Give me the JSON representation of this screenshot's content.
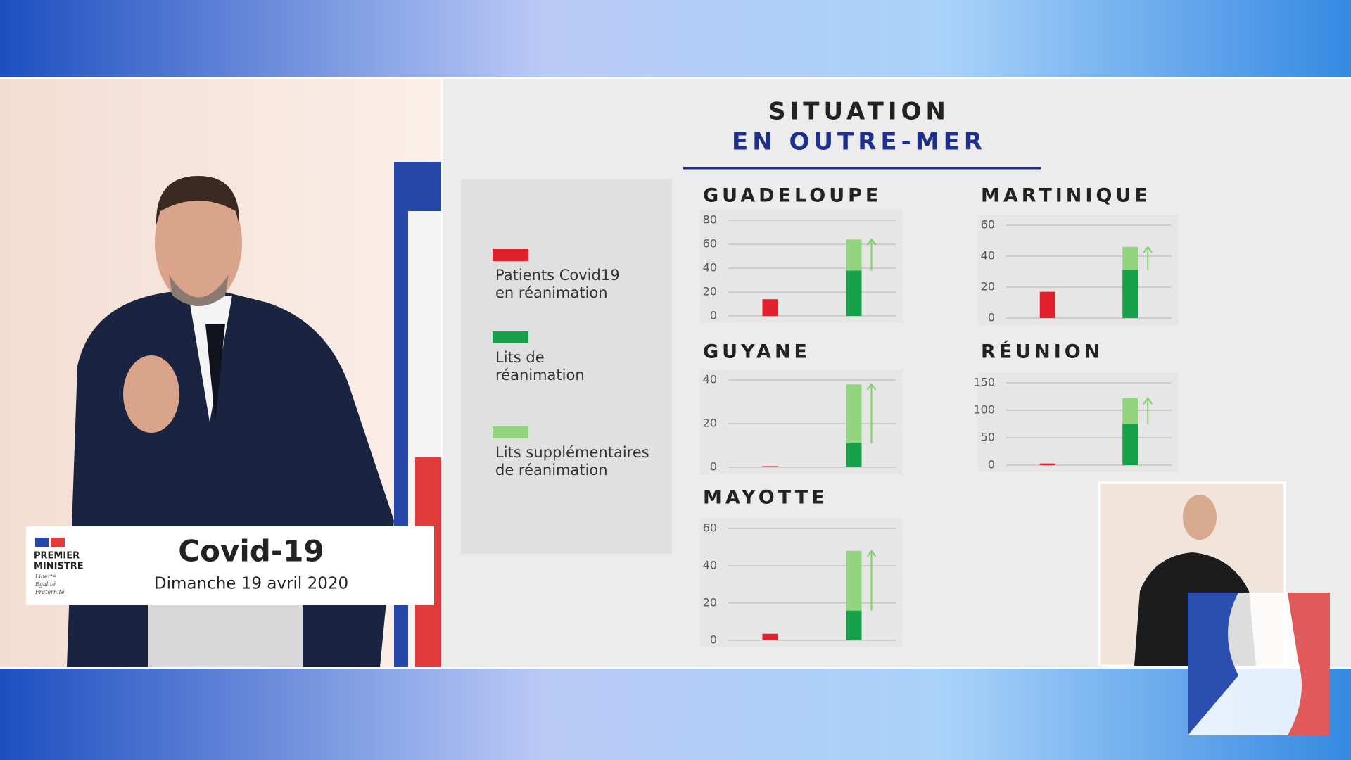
{
  "header": {
    "title": "SITUATION",
    "subtitle": "EN OUTRE-MER"
  },
  "legend": [
    {
      "lines": [
        "Patients Covid19",
        "en réanimation"
      ],
      "color": "#e0202a"
    },
    {
      "lines": [
        "Lits de",
        "réanimation"
      ],
      "color": "#17a04a"
    },
    {
      "lines": [
        "Lits supplémentaires",
        "de réanimation"
      ],
      "color": "#93d47e"
    }
  ],
  "podium": {
    "org": [
      "PREMIER",
      "MINISTRE"
    ],
    "motto": [
      "Liberté",
      "Égalité",
      "Fraternité"
    ],
    "title": "Covid-19",
    "date": "Dimanche 19 avril 2020"
  },
  "chart_data": [
    {
      "type": "bar",
      "stacked": true,
      "title": "GUADELOUPE",
      "categories": [
        null,
        null
      ],
      "ylim": [
        0,
        80
      ],
      "yticks": [
        0,
        20,
        40,
        60,
        80
      ],
      "grid": true,
      "series": [
        {
          "color": "#e0202a",
          "values": [
            14,
            null
          ]
        },
        {
          "color": "#17a04a",
          "values": [
            null,
            38
          ]
        },
        {
          "color": "#93d47e",
          "values": [
            null,
            26
          ]
        }
      ]
    },
    {
      "type": "bar",
      "stacked": true,
      "title": "MARTINIQUE",
      "categories": [
        null,
        null
      ],
      "ylim": [
        0,
        60
      ],
      "yticks": [
        0,
        20,
        40,
        60
      ],
      "grid": true,
      "series": [
        {
          "color": "#e0202a",
          "values": [
            17,
            null
          ]
        },
        {
          "color": "#17a04a",
          "values": [
            null,
            31
          ]
        },
        {
          "color": "#93d47e",
          "values": [
            null,
            15
          ]
        }
      ]
    },
    {
      "type": "bar",
      "stacked": true,
      "title": "GUYANE",
      "categories": [
        null,
        null
      ],
      "ylim": [
        0,
        40
      ],
      "yticks": [
        0,
        20,
        40
      ],
      "grid": true,
      "series": [
        {
          "color": "#e0202a",
          "values": [
            0.5,
            null
          ]
        },
        {
          "color": "#17a04a",
          "values": [
            null,
            11
          ]
        },
        {
          "color": "#93d47e",
          "values": [
            null,
            27
          ]
        }
      ]
    },
    {
      "type": "bar",
      "stacked": true,
      "title": "RÉUNION",
      "categories": [
        null,
        null
      ],
      "ylim": [
        0,
        150
      ],
      "yticks": [
        0,
        50,
        100,
        150
      ],
      "grid": true,
      "series": [
        {
          "color": "#e0202a",
          "values": [
            3,
            null
          ]
        },
        {
          "color": "#17a04a",
          "values": [
            null,
            75
          ]
        },
        {
          "color": "#93d47e",
          "values": [
            null,
            47
          ]
        }
      ]
    },
    {
      "type": "bar",
      "stacked": true,
      "title": "MAYOTTE",
      "categories": [
        null,
        null
      ],
      "ylim": [
        0,
        60
      ],
      "yticks": [
        0,
        20,
        40,
        60
      ],
      "grid": true,
      "series": [
        {
          "color": "#e0202a",
          "values": [
            3.5,
            null
          ]
        },
        {
          "color": "#17a04a",
          "values": [
            null,
            16
          ]
        },
        {
          "color": "#93d47e",
          "values": [
            null,
            32
          ]
        }
      ]
    }
  ]
}
